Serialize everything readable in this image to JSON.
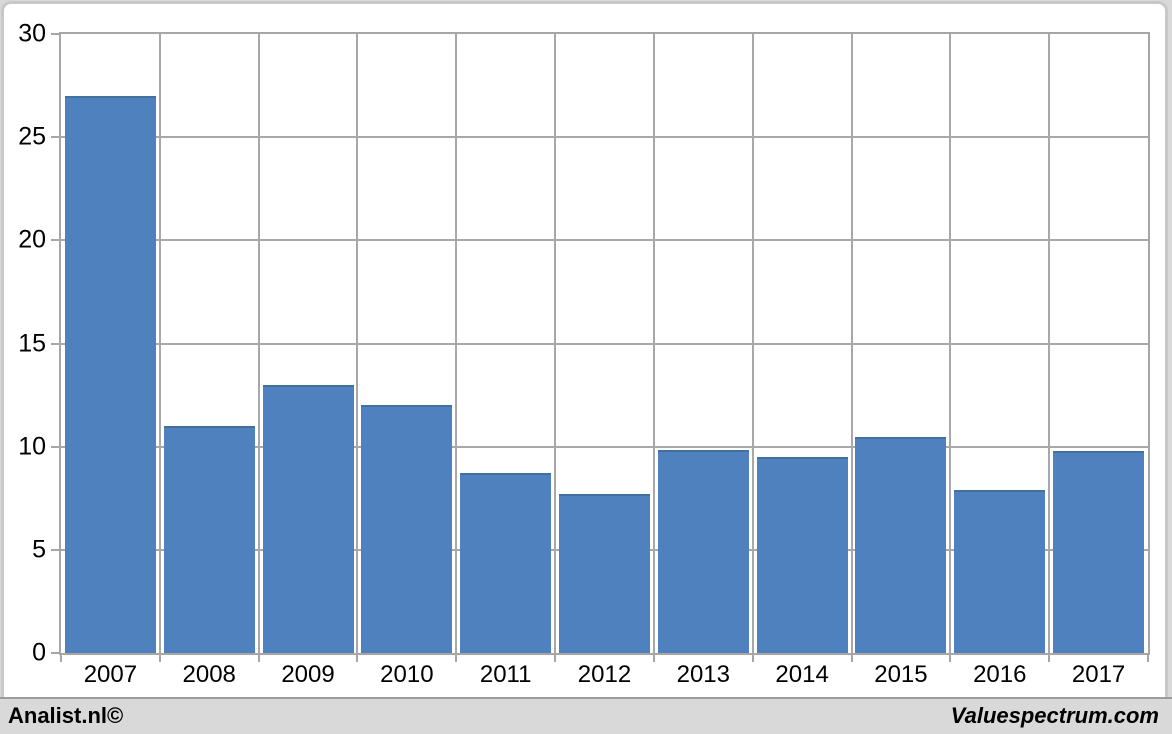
{
  "footer": {
    "left_watermark": "Analist.nl©",
    "right_watermark": "Valuespectrum.com"
  },
  "chart_data": {
    "type": "bar",
    "title": "",
    "xlabel": "",
    "ylabel": "",
    "categories": [
      "2007",
      "2008",
      "2009",
      "2010",
      "2011",
      "2012",
      "2013",
      "2014",
      "2015",
      "2016",
      "2017"
    ],
    "values": [
      27,
      11,
      13,
      12,
      8.7,
      7.7,
      9.85,
      9.5,
      10.45,
      7.9,
      9.8
    ],
    "ylim": [
      0,
      30
    ],
    "yticks": [
      0,
      5,
      10,
      15,
      20,
      25,
      30
    ],
    "grid": true,
    "legend_position": "none",
    "colors": {
      "bar_fill": "#4E81BD",
      "bar_top_edge": "#41719C",
      "gridline": "#A8A8A8",
      "axis_line": "#A6A6A6",
      "tick_mark": "#A6A6A6",
      "plot_background": "#FFFFFF",
      "card_border": "#C8C8C8",
      "footer_band": "#D9D9D9",
      "footer_band_line": "#9B9B9B",
      "label_text": "#000000"
    }
  }
}
